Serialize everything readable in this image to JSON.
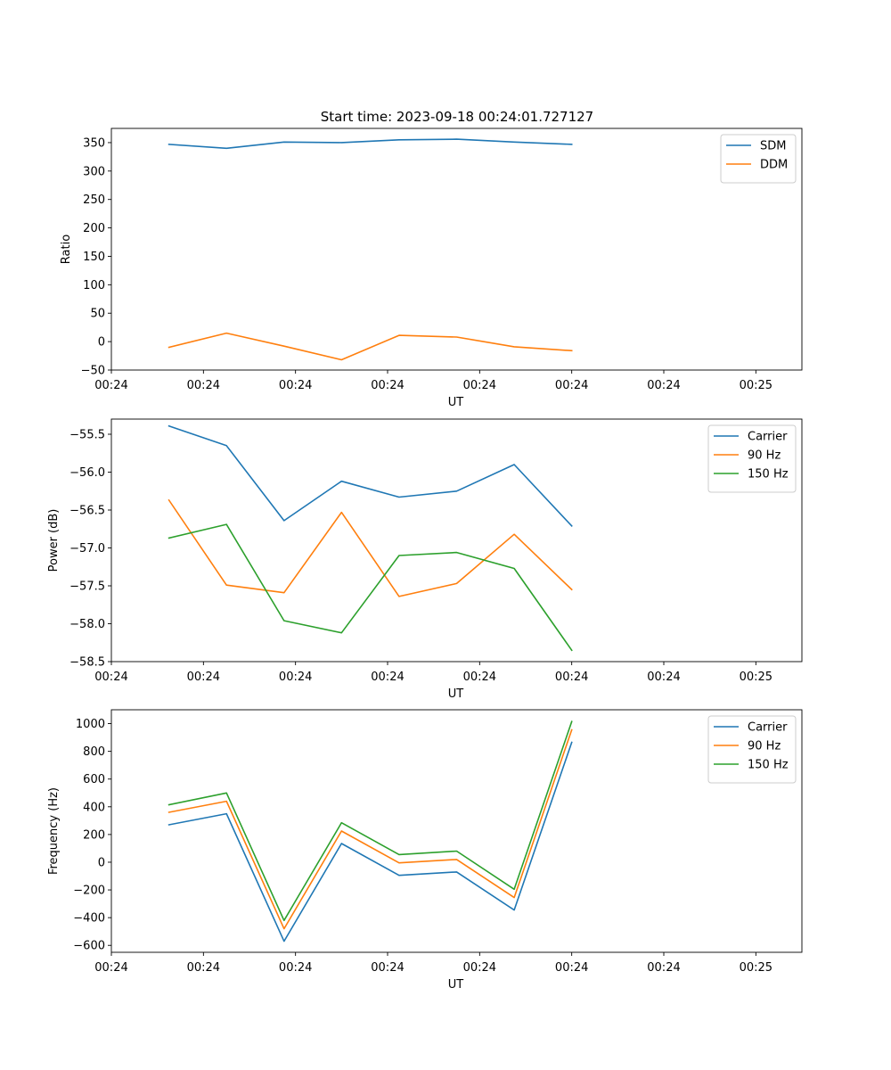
{
  "figure": {
    "title": "Start time: 2023-09-18 00:24:01.727127"
  },
  "colors": {
    "blue": "#1f77b4",
    "orange": "#ff7f0e",
    "green": "#2ca02c"
  },
  "chart_data": [
    {
      "type": "line",
      "xlabel": "UT",
      "ylabel": "Ratio",
      "x_ticks": [
        "00:24",
        "00:24",
        "00:24",
        "00:24",
        "00:24",
        "00:24",
        "00:24",
        "00:25"
      ],
      "x": [
        1,
        2,
        3,
        4,
        5,
        6,
        7,
        8
      ],
      "xlim": [
        0,
        12
      ],
      "ylim": [
        -50,
        375
      ],
      "y_ticks": [
        -50,
        0,
        50,
        100,
        150,
        200,
        250,
        300,
        350
      ],
      "y_tick_labels": [
        "−50",
        "0",
        "50",
        "100",
        "150",
        "200",
        "250",
        "300",
        "350"
      ],
      "legend": "top-right",
      "series": [
        {
          "name": "SDM",
          "color": "#1f77b4",
          "values": [
            347,
            340,
            351,
            350,
            355,
            356,
            351,
            347
          ]
        },
        {
          "name": "DDM",
          "color": "#ff7f0e",
          "values": [
            -10,
            15,
            -8,
            -32,
            11,
            8,
            -9,
            -16
          ]
        }
      ]
    },
    {
      "type": "line",
      "xlabel": "UT",
      "ylabel": "Power (dB)",
      "x_ticks": [
        "00:24",
        "00:24",
        "00:24",
        "00:24",
        "00:24",
        "00:24",
        "00:24",
        "00:25"
      ],
      "x": [
        1,
        2,
        3,
        4,
        5,
        6,
        7,
        8
      ],
      "xlim": [
        0,
        12
      ],
      "ylim": [
        -58.5,
        -55.3
      ],
      "y_ticks": [
        -58.5,
        -58.0,
        -57.5,
        -57.0,
        -56.5,
        -56.0,
        -55.5
      ],
      "y_tick_labels": [
        "−58.5",
        "−58.0",
        "−57.5",
        "−57.0",
        "−56.5",
        "−56.0",
        "−55.5"
      ],
      "legend": "top-right",
      "series": [
        {
          "name": "Carrier",
          "color": "#1f77b4",
          "values": [
            -55.39,
            -55.65,
            -56.64,
            -56.12,
            -56.33,
            -56.25,
            -55.9,
            -56.71
          ]
        },
        {
          "name": "90 Hz",
          "color": "#ff7f0e",
          "values": [
            -56.37,
            -57.49,
            -57.59,
            -56.53,
            -57.64,
            -57.47,
            -56.82,
            -57.55
          ]
        },
        {
          "name": "150 Hz",
          "color": "#2ca02c",
          "values": [
            -56.87,
            -56.69,
            -57.96,
            -58.12,
            -57.1,
            -57.06,
            -57.27,
            -58.35
          ]
        }
      ]
    },
    {
      "type": "line",
      "xlabel": "UT",
      "ylabel": "Frequency (Hz)",
      "x_ticks": [
        "00:24",
        "00:24",
        "00:24",
        "00:24",
        "00:24",
        "00:24",
        "00:24",
        "00:25"
      ],
      "x": [
        1,
        2,
        3,
        4,
        5,
        6,
        7,
        8
      ],
      "xlim": [
        0,
        12
      ],
      "ylim": [
        -650,
        1100
      ],
      "y_ticks": [
        -600,
        -400,
        -200,
        0,
        200,
        400,
        600,
        800,
        1000
      ],
      "y_tick_labels": [
        "−600",
        "−400",
        "−200",
        "0",
        "200",
        "400",
        "600",
        "800",
        "1000"
      ],
      "legend": "top-right",
      "series": [
        {
          "name": "Carrier",
          "color": "#1f77b4",
          "values": [
            270,
            350,
            -570,
            135,
            -95,
            -70,
            -345,
            865
          ]
        },
        {
          "name": "90 Hz",
          "color": "#ff7f0e",
          "values": [
            360,
            440,
            -480,
            225,
            -5,
            20,
            -255,
            955
          ]
        },
        {
          "name": "150 Hz",
          "color": "#2ca02c",
          "values": [
            415,
            500,
            -420,
            285,
            55,
            80,
            -195,
            1015
          ]
        }
      ]
    }
  ]
}
